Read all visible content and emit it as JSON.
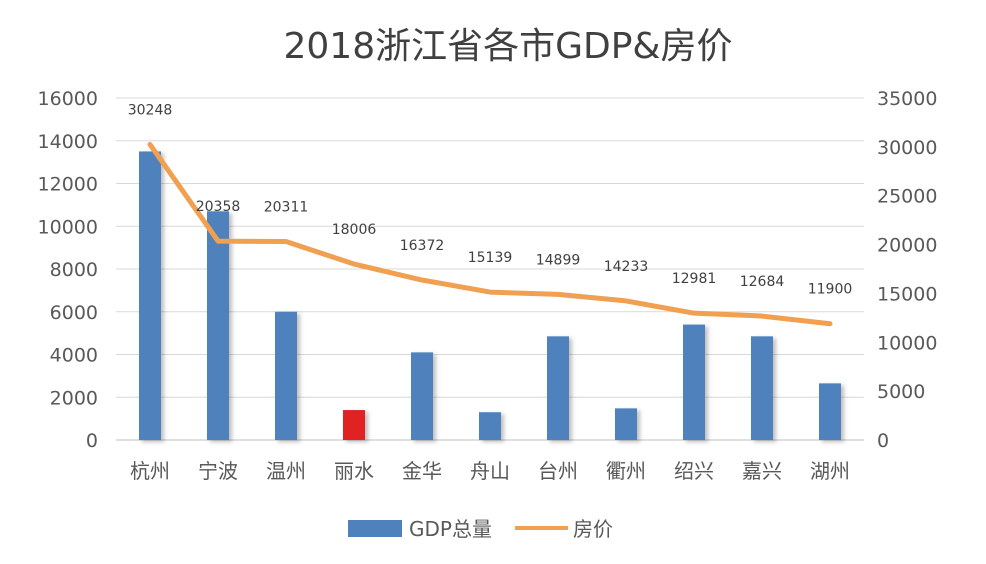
{
  "chart_data": {
    "type": "bar",
    "title": "2018浙江省各市GDP&房价",
    "categories": [
      "杭州",
      "宁波",
      "温州",
      "丽水",
      "金华",
      "舟山",
      "台州",
      "衢州",
      "绍兴",
      "嘉兴",
      "湖州"
    ],
    "series": [
      {
        "name": "GDP总量",
        "type": "bar",
        "axis": "left",
        "color": "#4f81bd",
        "highlight": {
          "index": 3,
          "color": "#e02020"
        },
        "values": [
          13500,
          10700,
          6000,
          1400,
          4100,
          1300,
          4850,
          1480,
          5400,
          4850,
          2650
        ]
      },
      {
        "name": "房价",
        "type": "line",
        "axis": "right",
        "color": "#f0a050",
        "values": [
          30248,
          20358,
          20311,
          18006,
          16372,
          15139,
          14899,
          14233,
          12981,
          12684,
          11900
        ],
        "labels": [
          "30248",
          "20358",
          "20311",
          "18006",
          "16372",
          "15139",
          "14899",
          "14233",
          "12981",
          "12684",
          "11900"
        ]
      }
    ],
    "y_left": {
      "min": 0,
      "max": 16000,
      "ticks": [
        "0",
        "2000",
        "4000",
        "6000",
        "8000",
        "10000",
        "12000",
        "14000",
        "16000"
      ]
    },
    "y_right": {
      "min": 0,
      "max": 35000,
      "ticks": [
        "0",
        "5000",
        "10000",
        "15000",
        "20000",
        "25000",
        "30000",
        "35000"
      ]
    },
    "grid": true,
    "legend_position": "bottom"
  }
}
